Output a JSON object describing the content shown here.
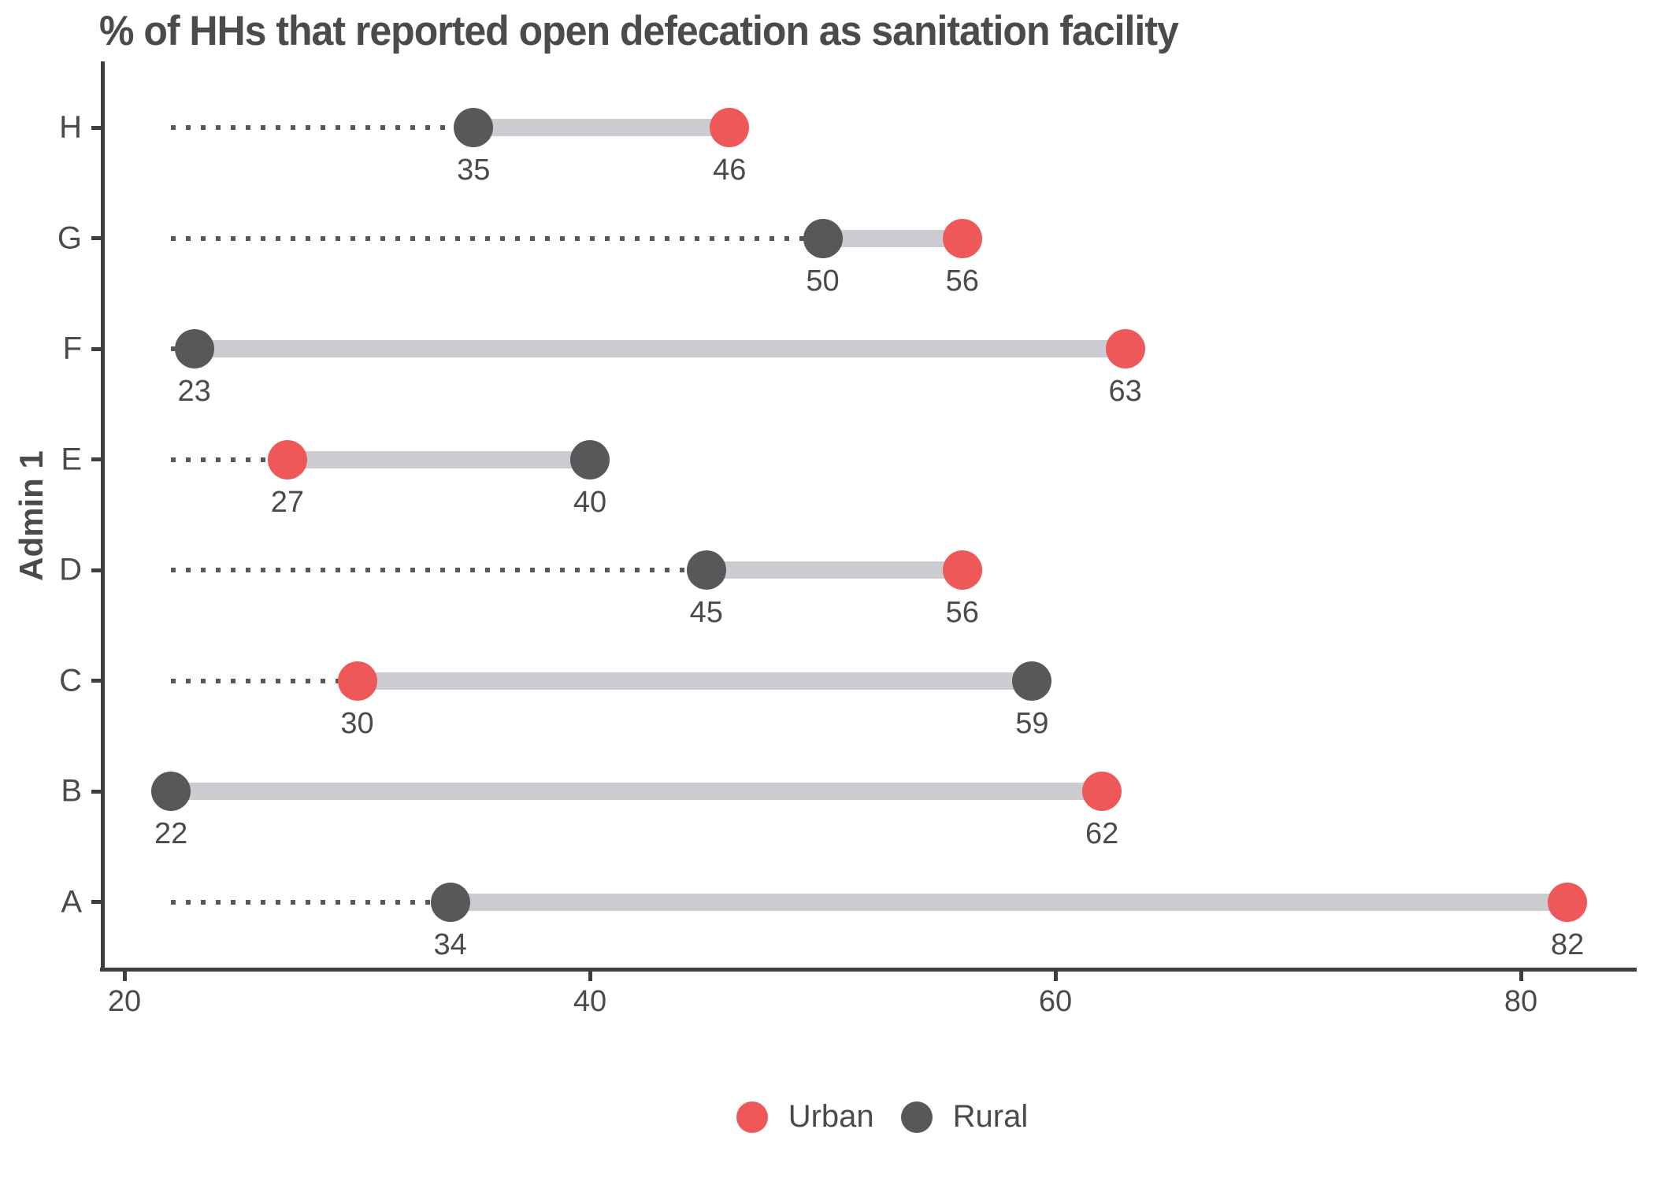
{
  "chart_data": {
    "type": "dumbbell",
    "title": "% of HHs that reported open defecation as sanitation facility",
    "xlabel": "",
    "ylabel": "Admin 1",
    "x_ticks": [
      20,
      40,
      60,
      80
    ],
    "xlim": [
      19,
      84.5
    ],
    "grid": "off",
    "legend_position": "bottom-center",
    "categories_top_to_bottom": [
      "H",
      "G",
      "F",
      "E",
      "D",
      "C",
      "B",
      "A"
    ],
    "series": [
      {
        "name": "Urban",
        "color": "#ee5859",
        "values": {
          "H": 46,
          "G": 56,
          "F": 63,
          "E": 27,
          "D": 56,
          "C": 30,
          "B": 62,
          "A": 82
        }
      },
      {
        "name": "Rural",
        "color": "#58585a",
        "values": {
          "H": 35,
          "G": 50,
          "F": 23,
          "E": 40,
          "D": 45,
          "C": 59,
          "B": 22,
          "A": 34
        }
      }
    ],
    "rows": [
      {
        "category": "H",
        "rural": 35,
        "urban": 46
      },
      {
        "category": "G",
        "rural": 50,
        "urban": 56
      },
      {
        "category": "F",
        "rural": 23,
        "urban": 63
      },
      {
        "category": "E",
        "rural": 40,
        "urban": 27
      },
      {
        "category": "D",
        "rural": 45,
        "urban": 56
      },
      {
        "category": "C",
        "rural": 59,
        "urban": 30
      },
      {
        "category": "B",
        "rural": 22,
        "urban": 62
      },
      {
        "category": "A",
        "rural": 34,
        "urban": 82
      }
    ],
    "colors": {
      "urban": "#ee5859",
      "rural": "#58585a",
      "connector_bar": "#cbcccf",
      "leader_dots": "#58585a",
      "axis": "#3e3e40",
      "text": "#4b4b4d"
    }
  },
  "legend": {
    "items": [
      {
        "label": "Urban",
        "color": "#ee5859"
      },
      {
        "label": "Rural",
        "color": "#58585a"
      }
    ]
  }
}
